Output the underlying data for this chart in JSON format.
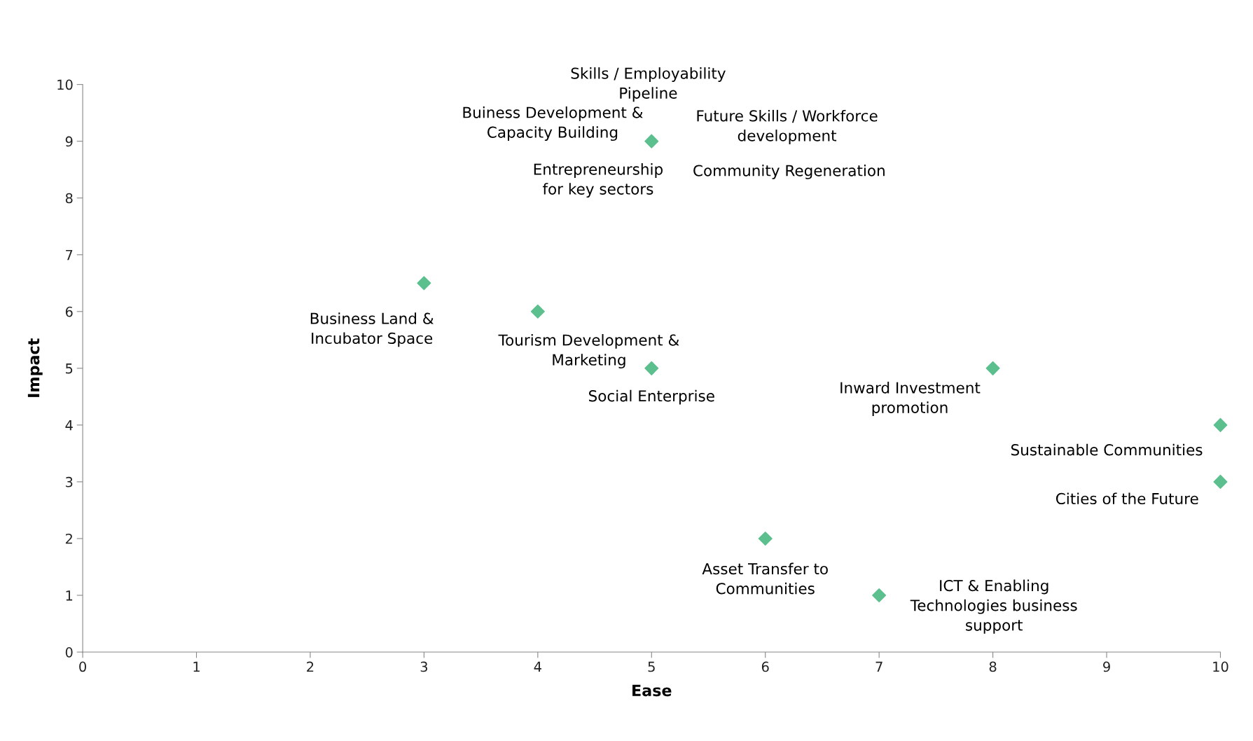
{
  "chart_data": {
    "type": "scatter",
    "xlabel": "Ease",
    "ylabel": "Impact",
    "x": [
      5,
      3,
      4,
      5,
      8,
      10,
      10,
      6,
      7
    ],
    "series": [
      {
        "color": "#5cbf8e",
        "values": [
          9,
          6.5,
          6,
          5,
          5,
          4,
          3,
          2,
          1
        ]
      }
    ],
    "marker": "diamond",
    "grid": false,
    "legend": false,
    "xlim": [
      0,
      10
    ],
    "xticks": [
      0,
      1,
      2,
      3,
      4,
      5,
      6,
      7,
      8,
      9,
      10
    ],
    "ylim": [
      0,
      10
    ],
    "yticks": [
      0,
      1,
      2,
      3,
      4,
      5,
      6,
      7,
      8,
      9,
      10
    ],
    "annotations": [
      {
        "text": "Skills / Employability\nPipeline",
        "x": 5,
        "y": 9
      },
      {
        "text": "Buiness Development &\nCapacity Building",
        "x": 5,
        "y": 9
      },
      "Future Skills / Workforce\ndevelopment",
      "Community Regeneration",
      {
        "text": "Entrepreneurship\nfor key sectors",
        "x": 5,
        "y": 9
      },
      {
        "text": "Business Land &\nIncubator Space",
        "x": 3,
        "y": 6.5
      },
      {
        "text": "Tourism Development &\nMarketing",
        "x": 4,
        "y": 6
      },
      {
        "text": "Social Enterprise",
        "x": 5,
        "y": 5
      },
      {
        "text": "Inward Investment\npromotion",
        "x": 8,
        "y": 5
      },
      {
        "text": "Sustainable Communities",
        "x": 10,
        "y": 4
      },
      {
        "text": "Cities of the Future",
        "x": 10,
        "y": 3
      },
      {
        "text": "Asset Transfer to\nCommunities",
        "x": 6,
        "y": 2
      },
      {
        "text": "ICT & Enabling\nTechnologies business\nsupport",
        "x": 7,
        "y": 1
      }
    ]
  }
}
